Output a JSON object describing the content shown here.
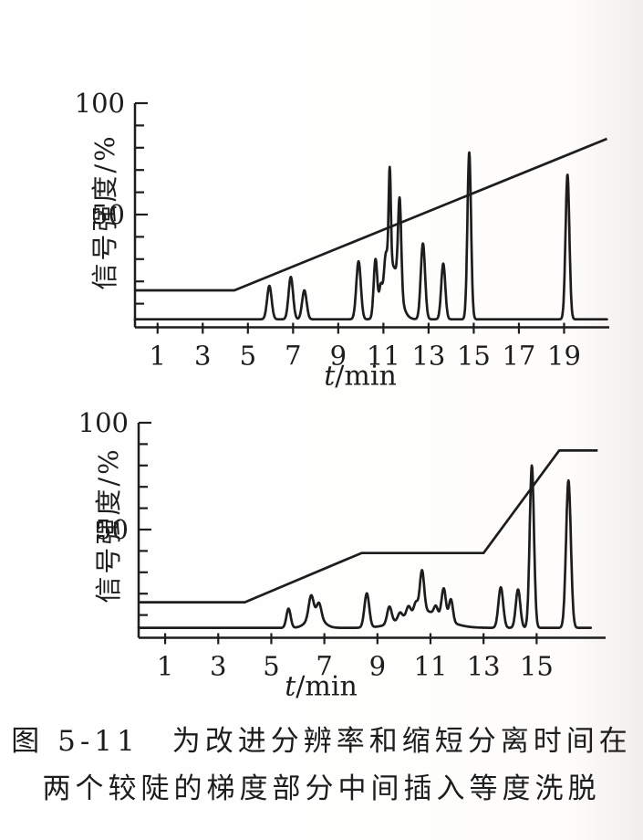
{
  "page": {
    "ink_color": "#1d1d1d",
    "paper_color": "#fefdfc"
  },
  "caption": {
    "line1": "图 5-11　为改进分辨率和缩短分离时间在",
    "line2": "两个较陡的梯度部分中间插入等度洗脱"
  },
  "chart_data": [
    {
      "type": "line",
      "title": "",
      "xlabel": "t/min",
      "ylabel": "信号强度/%",
      "xlim": [
        0,
        21
      ],
      "ylim": [
        0,
        100
      ],
      "x_ticks": [
        1,
        3,
        5,
        7,
        9,
        11,
        13,
        15,
        17,
        19
      ],
      "y_minor_tick_step": 10,
      "y_labeled_ticks": [
        50,
        100
      ],
      "grid": false,
      "legend": null,
      "series": [
        {
          "name": "gradient-program",
          "kind": "segments",
          "points": [
            [
              0,
              16
            ],
            [
              4.4,
              16
            ],
            [
              20.9,
              84
            ]
          ]
        },
        {
          "name": "chromatogram",
          "kind": "peaks",
          "baseline": 3,
          "end": 20.9,
          "peaks": [
            [
              5.95,
              15,
              0.1
            ],
            [
              6.9,
              19,
              0.1
            ],
            [
              7.5,
              13,
              0.1
            ],
            [
              9.9,
              26,
              0.1
            ],
            [
              10.65,
              26,
              0.08
            ],
            [
              10.88,
              10,
              0.065
            ],
            [
              11.1,
              15,
              0.08
            ],
            [
              11.4,
              24,
              0.3
            ],
            [
              11.28,
              45,
              0.05
            ],
            [
              11.72,
              41,
              0.07
            ],
            [
              12.75,
              34,
              0.095
            ],
            [
              13.65,
              25,
              0.09
            ],
            [
              14.8,
              75,
              0.08
            ],
            [
              19.15,
              65,
              0.085
            ]
          ]
        }
      ]
    },
    {
      "type": "line",
      "title": "",
      "xlabel": "t/min",
      "ylabel": "信号强度/%",
      "xlim": [
        0,
        17.6
      ],
      "ylim": [
        0,
        100
      ],
      "x_ticks": [
        1,
        3,
        5,
        7,
        9,
        11,
        13,
        15
      ],
      "y_minor_tick_step": 10,
      "y_labeled_ticks": [
        50,
        100
      ],
      "grid": false,
      "legend": null,
      "series": [
        {
          "name": "gradient-program",
          "kind": "segments",
          "points": [
            [
              0,
              16
            ],
            [
              4,
              16
            ],
            [
              8.4,
              39
            ],
            [
              13,
              39
            ],
            [
              15.85,
              87
            ],
            [
              17.3,
              87
            ]
          ]
        },
        {
          "name": "chromatogram",
          "kind": "peaks",
          "baseline": 4,
          "end": 17.05,
          "peaks": [
            [
              5.65,
              9,
              0.08
            ],
            [
              6.5,
              10,
              0.09
            ],
            [
              6.8,
              6.5,
              0.085
            ],
            [
              6.65,
              6,
              0.28
            ],
            [
              8.6,
              16,
              0.09
            ],
            [
              9.45,
              8,
              0.085
            ],
            [
              9.85,
              3,
              0.075
            ],
            [
              10.17,
              4,
              0.075
            ],
            [
              10.45,
              4.5,
              0.07
            ],
            [
              10.68,
              19,
              0.08
            ],
            [
              10.7,
              8,
              0.75
            ],
            [
              11.2,
              4,
              0.07
            ],
            [
              11.5,
              14,
              0.08
            ],
            [
              11.77,
              10.5,
              0.075
            ],
            [
              13.65,
              19,
              0.09
            ],
            [
              14.3,
              18,
              0.085
            ],
            [
              14.82,
              76,
              0.08
            ],
            [
              16.2,
              69,
              0.09
            ]
          ]
        }
      ]
    }
  ]
}
